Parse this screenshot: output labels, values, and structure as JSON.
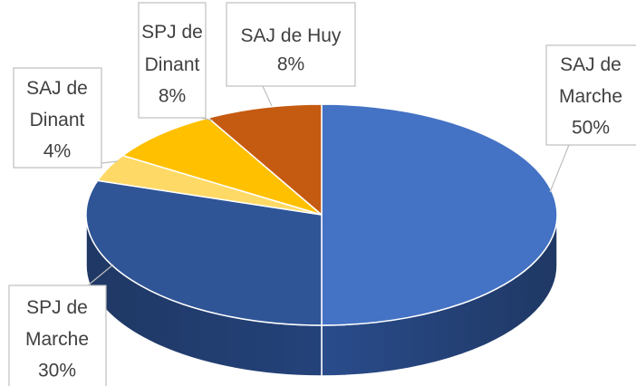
{
  "chart_data": {
    "type": "pie3d",
    "categories": [
      "SAJ de Marche",
      "SPJ de Marche",
      "SAJ de Dinant",
      "SPJ de Dinant",
      "SAJ de Huy"
    ],
    "values": [
      50,
      30,
      4,
      8,
      8
    ],
    "value_labels": [
      "50%",
      "30%",
      "4%",
      "8%",
      "8%"
    ],
    "colors": [
      "#4472c4",
      "#2f5597",
      "#ffd966",
      "#ffc000",
      "#c55a11"
    ]
  }
}
